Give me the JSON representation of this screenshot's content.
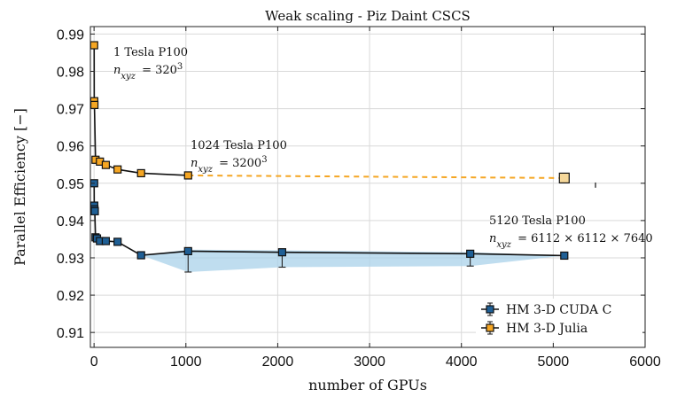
{
  "chart_data": {
    "type": "line",
    "title": "Weak scaling - Piz Daint CSCS",
    "xlabel": "number of GPUs",
    "ylabel": "Parallel Efficiency  [−]",
    "xlim": [
      -40,
      6000
    ],
    "ylim": [
      0.906,
      0.992
    ],
    "x_ticks": [
      0,
      1000,
      2000,
      3000,
      4000,
      5000,
      6000
    ],
    "y_ticks": [
      0.91,
      0.92,
      0.93,
      0.94,
      0.95,
      0.96,
      0.97,
      0.98,
      0.99
    ],
    "grid": true,
    "legend_position": "bottom-right",
    "series": [
      {
        "name": "HM 3-D CUDA C",
        "color": "#1f5f95",
        "marker": "square",
        "points": [
          {
            "x": 1,
            "y": 0.95
          },
          {
            "x": 2,
            "y": 0.944
          },
          {
            "x": 4,
            "y": 0.943
          },
          {
            "x": 8,
            "y": 0.9425
          },
          {
            "x": 16,
            "y": 0.9355
          },
          {
            "x": 32,
            "y": 0.9352
          },
          {
            "x": 64,
            "y": 0.9345
          },
          {
            "x": 128,
            "y": 0.9345
          },
          {
            "x": 256,
            "y": 0.9343
          },
          {
            "x": 512,
            "y": 0.9307
          },
          {
            "x": 1024,
            "y": 0.9318
          },
          {
            "x": 2048,
            "y": 0.9315
          },
          {
            "x": 4096,
            "y": 0.9311
          },
          {
            "x": 5120,
            "y": 0.9306
          }
        ],
        "error_bars": [
          {
            "x": 1024,
            "low": 0.9262,
            "high": 0.9322
          },
          {
            "x": 2048,
            "low": 0.9275,
            "high": 0.932
          },
          {
            "x": 4096,
            "low": 0.9278,
            "high": 0.9315
          }
        ],
        "shaded_band": {
          "x": [
            512,
            1024,
            2048,
            4096,
            5120
          ],
          "low": [
            0.9307,
            0.9262,
            0.9275,
            0.9278,
            0.9306
          ],
          "high": [
            0.9307,
            0.9322,
            0.932,
            0.9315,
            0.9306
          ]
        }
      },
      {
        "name": "HM 3-D Julia",
        "color": "#f5a623",
        "marker": "square",
        "points": [
          {
            "x": 1,
            "y": 0.987
          },
          {
            "x": 2,
            "y": 0.972
          },
          {
            "x": 4,
            "y": 0.971
          },
          {
            "x": 16,
            "y": 0.9563
          },
          {
            "x": 64,
            "y": 0.9558
          },
          {
            "x": 128,
            "y": 0.9549
          },
          {
            "x": 256,
            "y": 0.9537
          },
          {
            "x": 512,
            "y": 0.9527
          },
          {
            "x": 1024,
            "y": 0.9521
          }
        ],
        "extrapolation": {
          "from": {
            "x": 1024,
            "y": 0.9521
          },
          "to": {
            "x": 5120,
            "y": 0.9514
          },
          "end_marker_color": "#f6d89a"
        }
      }
    ],
    "annotations": [
      {
        "line1": "1 Tesla P100",
        "line2_label": "n",
        "line2_sub": "xyz",
        "line2_value": "= 320",
        "line2_exp": "3"
      },
      {
        "line1": "1024 Tesla P100",
        "line2_label": "n",
        "line2_sub": "xyz",
        "line2_value": "= 3200",
        "line2_exp": "3"
      },
      {
        "line1": "5120 Tesla P100",
        "line2_label": "n",
        "line2_sub": "xyz",
        "line2_value": "= 6112 × 6112 × 7640",
        "line2_exp": ""
      }
    ]
  }
}
